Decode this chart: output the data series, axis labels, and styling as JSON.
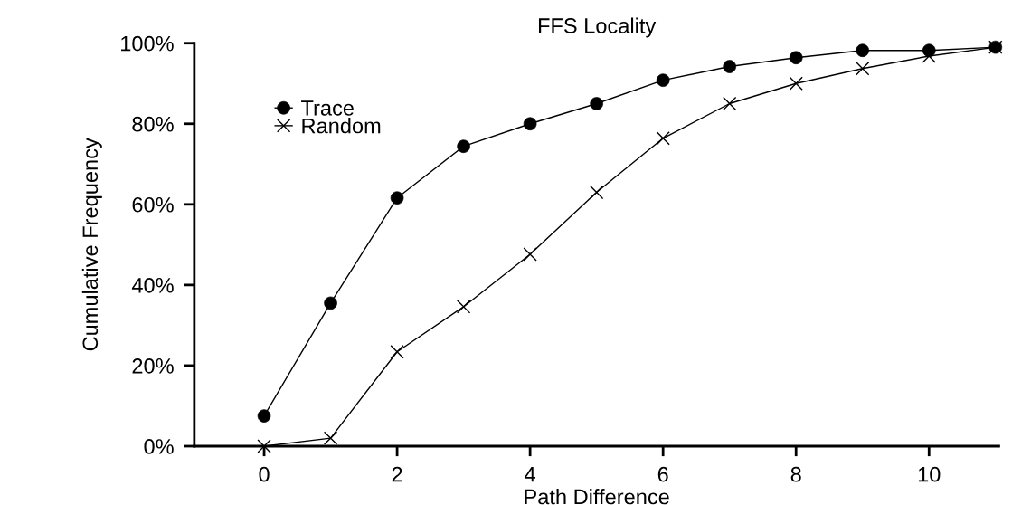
{
  "chart_data": {
    "type": "line",
    "title": "FFS Locality",
    "xlabel": "Path Difference",
    "ylabel": "Cumulative Frequency",
    "x": [
      0,
      1,
      2,
      3,
      4,
      5,
      6,
      7,
      8,
      9,
      10,
      11
    ],
    "series": [
      {
        "name": "Trace",
        "color": "#000000",
        "marker": "circle",
        "values": [
          7.5,
          35.5,
          61.6,
          74.4,
          80,
          85,
          90.8,
          94.2,
          96.4,
          98.2,
          98.2,
          99
        ]
      },
      {
        "name": "Random",
        "color": "#000000",
        "marker": "cross",
        "values": [
          0,
          2,
          23.4,
          34.6,
          47.6,
          63,
          76.4,
          85,
          90,
          93.7,
          96.8,
          99
        ]
      }
    ],
    "xlim": [
      -1.05,
      11.05
    ],
    "xticks": [
      0,
      2,
      4,
      6,
      8,
      10
    ],
    "ylim": [
      0,
      100
    ],
    "yticks": [
      {
        "value": 0,
        "label": "0%"
      },
      {
        "value": 20,
        "label": "20%"
      },
      {
        "value": 40,
        "label": "40%"
      },
      {
        "value": 60,
        "label": "60%"
      },
      {
        "value": 80,
        "label": "80%"
      },
      {
        "value": 100,
        "label": "100%"
      }
    ],
    "grid": false,
    "legend": "top left",
    "line_style": "solid"
  }
}
